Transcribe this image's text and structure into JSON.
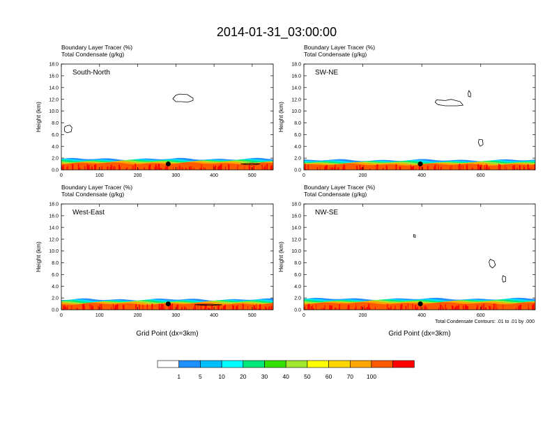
{
  "title": "2014-01-31_03:00:00",
  "footnote": "Total Condensate Contours: .01 to .01 by .000",
  "colorbar": {
    "colors": [
      "#ffffff",
      "#1e90ff",
      "#00bfff",
      "#00ffff",
      "#00e87a",
      "#33e000",
      "#a0e830",
      "#ffff00",
      "#ffd700",
      "#ffa500",
      "#ff5a00",
      "#ff0000"
    ],
    "labels": [
      "1",
      "5",
      "10",
      "20",
      "30",
      "40",
      "50",
      "60",
      "70",
      "100"
    ]
  },
  "chart_data": [
    {
      "type": "contour-cross-section",
      "header1": "Boundary Layer Tracer   (%)",
      "header2": "Total Condensate   (g/kg)",
      "panel_label": "South-North",
      "ylabel": "Height (km)",
      "xlabel": "",
      "ylim": [
        0,
        18
      ],
      "yticks": [
        "0.0",
        "2.0",
        "4.0",
        "6.0",
        "8.0",
        "10.0",
        "12.0",
        "14.0",
        "16.0",
        "18.0"
      ],
      "xlim": [
        0,
        555
      ],
      "xticks": [
        0,
        100,
        200,
        300,
        400,
        500
      ],
      "marker": {
        "x": 280,
        "z": 1.0
      },
      "tracer_top_km": 1.5,
      "condensate_contours": [
        {
          "x": [
            310,
            330,
            345,
            345,
            330,
            315,
            300,
            292,
            300
          ],
          "z": [
            12.9,
            12.8,
            12.2,
            11.8,
            11.5,
            11.6,
            11.6,
            12.1,
            12.7
          ]
        },
        {
          "x": [
            10,
            22,
            28,
            26,
            15,
            8,
            8
          ],
          "z": [
            7.4,
            7.6,
            7.2,
            6.5,
            6.3,
            6.6,
            7.1
          ]
        },
        {
          "x": [
            470,
            500,
            520,
            500,
            470
          ],
          "z": [
            1.0,
            1.15,
            1.0,
            0.85,
            1.0
          ]
        }
      ]
    },
    {
      "type": "contour-cross-section",
      "header1": "Boundary Layer Tracer   (%)",
      "header2": "Total Condensate   (g/kg)",
      "panel_label": "SW-NE",
      "ylabel": "Height (km)",
      "xlabel": "",
      "ylim": [
        0,
        18
      ],
      "yticks": [
        "0.0",
        "2.0",
        "4.0",
        "6.0",
        "8.0",
        "10.0",
        "12.0",
        "14.0",
        "16.0",
        "18.0"
      ],
      "xlim": [
        0,
        785
      ],
      "xticks": [
        0,
        200,
        400,
        600
      ],
      "marker": {
        "x": 395,
        "z": 1.0
      },
      "tracer_top_km": 1.3,
      "condensate_contours": [
        {
          "x": [
            450,
            480,
            500,
            530,
            540,
            520,
            480,
            455,
            445
          ],
          "z": [
            11.9,
            11.8,
            12.0,
            11.6,
            11.0,
            10.9,
            10.9,
            11.1,
            11.5
          ]
        },
        {
          "x": [
            560,
            566,
            565,
            558,
            557
          ],
          "z": [
            13.5,
            13.0,
            12.4,
            12.5,
            13.0
          ]
        },
        {
          "x": [
            594,
            606,
            608,
            598,
            592
          ],
          "z": [
            5.2,
            5.1,
            4.3,
            4.0,
            4.6
          ]
        }
      ]
    },
    {
      "type": "contour-cross-section",
      "header1": "Boundary Layer Tracer   (%)",
      "header2": "Total Condensate   (g/kg)",
      "panel_label": "West-East",
      "ylabel": "Height (km)",
      "xlabel": "Grid Point (dx=3km)",
      "ylim": [
        0,
        18
      ],
      "yticks": [
        "0.0",
        "2.0",
        "4.0",
        "6.0",
        "8.0",
        "10.0",
        "12.0",
        "14.0",
        "16.0",
        "18.0"
      ],
      "xlim": [
        0,
        555
      ],
      "xticks": [
        0,
        100,
        200,
        300,
        400,
        500
      ],
      "marker": {
        "x": 280,
        "z": 1.0
      },
      "tracer_top_km": 1.4,
      "condensate_contours": [
        {
          "x": [
            350,
            390,
            420,
            390,
            350
          ],
          "z": [
            0.85,
            0.95,
            0.85,
            0.72,
            0.85
          ]
        }
      ]
    },
    {
      "type": "contour-cross-section",
      "header1": "Boundary Layer Tracer   (%)",
      "header2": "Total Condensate   (g/kg)",
      "panel_label": "NW-SE",
      "ylabel": "Height (km)",
      "xlabel": "Grid Point (dx=3km)",
      "ylim": [
        0,
        18
      ],
      "yticks": [
        "0.0",
        "2.0",
        "4.0",
        "6.0",
        "8.0",
        "10.0",
        "12.0",
        "14.0",
        "16.0",
        "18.0"
      ],
      "xlim": [
        0,
        785
      ],
      "xticks": [
        0,
        200,
        400,
        600
      ],
      "marker": {
        "x": 395,
        "z": 1.0
      },
      "tracer_top_km": 1.5,
      "condensate_contours": [
        {
          "x": [
            372,
            378,
            378,
            372
          ],
          "z": [
            12.8,
            12.7,
            12.3,
            12.4
          ]
        },
        {
          "x": [
            632,
            645,
            650,
            640,
            632,
            628
          ],
          "z": [
            8.6,
            8.3,
            7.6,
            7.1,
            7.4,
            8.1
          ]
        },
        {
          "x": [
            675,
            684,
            684,
            676,
            673
          ],
          "z": [
            5.8,
            5.6,
            4.8,
            4.7,
            5.2
          ]
        }
      ]
    }
  ]
}
